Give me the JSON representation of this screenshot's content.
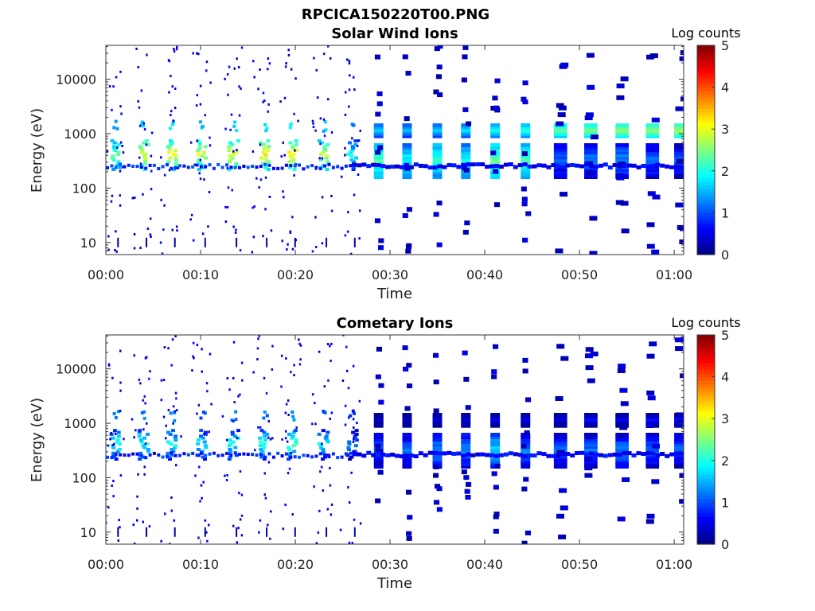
{
  "figure": {
    "title": "RPCICA150220T00.PNG"
  },
  "colormap": [
    "#00007f",
    "#0000ff",
    "#007fff",
    "#00ffff",
    "#7fff7f",
    "#ffff00",
    "#ff7f00",
    "#ff0000",
    "#7f0000"
  ],
  "chart_data": [
    {
      "type": "heatmap",
      "title": "Solar Wind Ions",
      "xlabel": "Time",
      "ylabel": "Energy (eV)",
      "x_ticks": [
        "00:00",
        "00:10",
        "00:20",
        "00:30",
        "00:40",
        "00:50",
        "01:00"
      ],
      "x_range_minutes": [
        0,
        61
      ],
      "y_scale": "log",
      "y_ticks": [
        "10",
        "100",
        "1000",
        "10000"
      ],
      "y_range_eV": [
        6,
        42000
      ],
      "colorbar": {
        "label": "Log counts",
        "range": [
          0,
          5
        ],
        "ticks": [
          "0",
          "1",
          "2",
          "3",
          "4",
          "5"
        ]
      },
      "legend": "none",
      "regime_change_minute": 26,
      "scans_early": [
        {
          "t": 0.3,
          "main": 2.4
        },
        {
          "t": 3.3,
          "main": 3.0
        },
        {
          "t": 6.3,
          "main": 3.0
        },
        {
          "t": 9.5,
          "main": 2.9
        },
        {
          "t": 12.8,
          "main": 3.0
        },
        {
          "t": 16.0,
          "main": 3.1
        },
        {
          "t": 19.0,
          "main": 3.2
        },
        {
          "t": 22.3,
          "main": 2.8
        },
        {
          "t": 25.3,
          "main": 2.0
        }
      ],
      "baseline_energy_eV": 250,
      "scans_late": [
        {
          "t": 28.3,
          "w": 1.0,
          "mid": 2.3,
          "hi": 1.7
        },
        {
          "t": 31.3,
          "w": 1.0,
          "mid": 2.0,
          "hi": 1.6
        },
        {
          "t": 34.5,
          "w": 1.0,
          "mid": 2.2,
          "hi": 1.7
        },
        {
          "t": 37.5,
          "w": 1.0,
          "mid": 2.0,
          "hi": 1.8
        },
        {
          "t": 40.6,
          "w": 1.0,
          "mid": 2.4,
          "hi": 2.0
        },
        {
          "t": 43.8,
          "w": 1.0,
          "mid": 2.2,
          "hi": 2.1
        },
        {
          "t": 47.3,
          "w": 1.4,
          "mid": 1.2,
          "hi": 2.4
        },
        {
          "t": 50.5,
          "w": 1.4,
          "mid": 1.3,
          "hi": 2.5
        },
        {
          "t": 53.8,
          "w": 1.4,
          "mid": 1.4,
          "hi": 2.6
        },
        {
          "t": 57.0,
          "w": 1.4,
          "mid": 1.2,
          "hi": 2.6
        },
        {
          "t": 60.0,
          "w": 1.4,
          "mid": 1.1,
          "hi": 2.7
        }
      ]
    },
    {
      "type": "heatmap",
      "title": "Cometary Ions",
      "xlabel": "Time",
      "ylabel": "Energy (eV)",
      "x_ticks": [
        "00:00",
        "00:10",
        "00:20",
        "00:30",
        "00:40",
        "00:50",
        "01:00"
      ],
      "x_range_minutes": [
        0,
        61
      ],
      "y_scale": "log",
      "y_ticks": [
        "10",
        "100",
        "1000",
        "10000"
      ],
      "y_range_eV": [
        6,
        42000
      ],
      "colorbar": {
        "label": "Log counts",
        "range": [
          0,
          5
        ],
        "ticks": [
          "0",
          "1",
          "2",
          "3",
          "4",
          "5"
        ]
      },
      "legend": "none",
      "regime_change_minute": 26,
      "scans_early": [
        {
          "t": 0.3,
          "main": 2.0
        },
        {
          "t": 3.3,
          "main": 2.0
        },
        {
          "t": 6.3,
          "main": 1.9
        },
        {
          "t": 9.5,
          "main": 1.8
        },
        {
          "t": 12.8,
          "main": 1.9
        },
        {
          "t": 16.0,
          "main": 2.0
        },
        {
          "t": 19.0,
          "main": 2.2
        },
        {
          "t": 22.3,
          "main": 1.8
        },
        {
          "t": 25.3,
          "main": 1.3
        }
      ],
      "baseline_energy_eV": 260,
      "scans_late": [
        {
          "t": 28.3,
          "w": 1.0,
          "mid": 1.1,
          "hi": 0.4
        },
        {
          "t": 31.3,
          "w": 1.0,
          "mid": 1.2,
          "hi": 0.4
        },
        {
          "t": 34.5,
          "w": 1.0,
          "mid": 1.4,
          "hi": 0.5
        },
        {
          "t": 37.5,
          "w": 1.0,
          "mid": 1.3,
          "hi": 0.5
        },
        {
          "t": 40.6,
          "w": 1.0,
          "mid": 1.7,
          "hi": 0.6
        },
        {
          "t": 43.8,
          "w": 1.0,
          "mid": 1.3,
          "hi": 0.6
        },
        {
          "t": 47.3,
          "w": 1.4,
          "mid": 1.1,
          "hi": 0.5
        },
        {
          "t": 50.5,
          "w": 1.4,
          "mid": 1.2,
          "hi": 0.7
        },
        {
          "t": 53.8,
          "w": 1.4,
          "mid": 1.3,
          "hi": 0.6
        },
        {
          "t": 57.0,
          "w": 1.4,
          "mid": 1.2,
          "hi": 0.7
        },
        {
          "t": 60.0,
          "w": 1.4,
          "mid": 1.1,
          "hi": 0.7
        }
      ]
    }
  ]
}
